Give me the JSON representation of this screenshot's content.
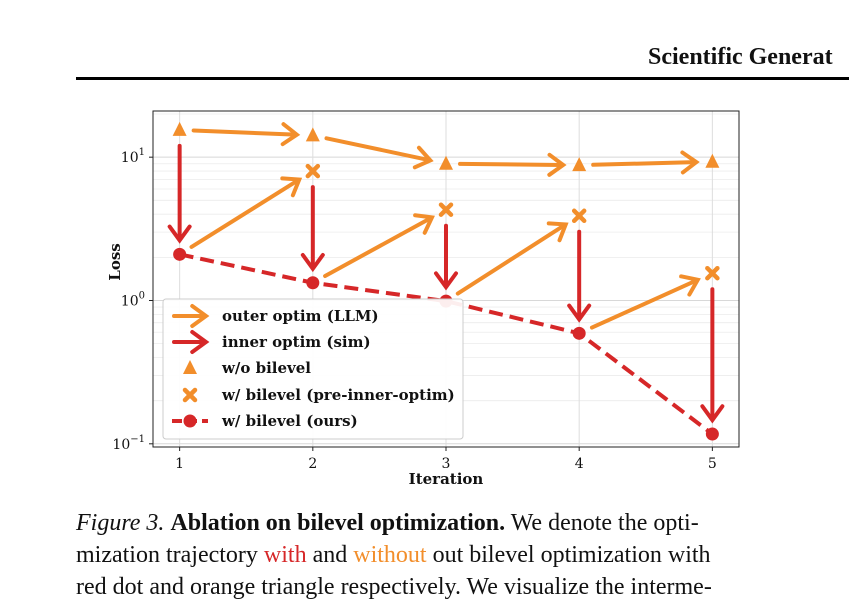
{
  "header": {
    "running_title": "Scientific Generat"
  },
  "figure": {
    "caption": {
      "label": "Figure 3.",
      "title": "Ablation on bilevel optimization.",
      "line1_rest": "We denote the opti-",
      "line2_a": "mization trajectory ",
      "line2_with": "with",
      "line2_b": " and ",
      "line2_without": "without",
      "line2_c": " out bilevel optimization with",
      "line3": "red dot and orange triangle respectively. We visualize the interme-"
    }
  },
  "chart_data": {
    "type": "line",
    "xlabel": "Iteration",
    "ylabel": "Loss",
    "yscale": "log",
    "xlim": [
      0.8,
      5.2
    ],
    "ylim": [
      0.095,
      21
    ],
    "xticks": [
      "1",
      "2",
      "3",
      "4",
      "5"
    ],
    "yticks": [
      {
        "value": 10,
        "base": "10",
        "exp": "1"
      },
      {
        "value": 1,
        "base": "10",
        "exp": "0"
      },
      {
        "value": 0.1,
        "base": "10",
        "exp": "−1"
      }
    ],
    "grid": true,
    "legend_position": "lower-left",
    "colors": {
      "orange": "#f28e2b",
      "red": "#d62728"
    },
    "series": [
      {
        "name": "w/o bilevel",
        "marker": "triangle",
        "x": [
          1,
          2,
          3,
          4,
          5
        ],
        "y": [
          15.5,
          14.2,
          9.0,
          8.8,
          9.3
        ]
      },
      {
        "name": "w/ bilevel (pre-inner-optim)",
        "marker": "x",
        "x": [
          2,
          3,
          4,
          5
        ],
        "y": [
          8.0,
          4.3,
          3.9,
          1.55
        ]
      },
      {
        "name": "w/ bilevel (ours)",
        "marker": "circle",
        "linestyle": "dashed",
        "x": [
          1,
          2,
          3,
          4,
          5
        ],
        "y": [
          2.1,
          1.33,
          0.99,
          0.59,
          0.117
        ]
      }
    ],
    "legend": [
      {
        "label": "outer optim (LLM)",
        "kind": "arrow-orange"
      },
      {
        "label": "inner optim (sim)",
        "kind": "arrow-red"
      },
      {
        "label": "w/o bilevel",
        "kind": "triangle"
      },
      {
        "label": "w/ bilevel (pre-inner-optim)",
        "kind": "x"
      },
      {
        "label": "w/ bilevel (ours)",
        "kind": "dashed-circle"
      }
    ],
    "outer_optim_arrows": [
      {
        "from": [
          1,
          15.5
        ],
        "to": [
          2,
          14.2
        ]
      },
      {
        "from": [
          2,
          14.2
        ],
        "to": [
          3,
          9.0
        ]
      },
      {
        "from": [
          3,
          9.0
        ],
        "to": [
          4,
          8.8
        ]
      },
      {
        "from": [
          4,
          8.8
        ],
        "to": [
          5,
          9.3
        ]
      },
      {
        "from": [
          1,
          2.1
        ],
        "to": [
          2,
          8.0
        ]
      },
      {
        "from": [
          2,
          1.33
        ],
        "to": [
          3,
          4.3
        ]
      },
      {
        "from": [
          3,
          0.99
        ],
        "to": [
          4,
          3.9
        ]
      },
      {
        "from": [
          4,
          0.59
        ],
        "to": [
          5,
          1.55
        ]
      }
    ],
    "inner_optim_arrows": [
      {
        "from": [
          1,
          15.5
        ],
        "to": [
          1,
          2.1
        ]
      },
      {
        "from": [
          2,
          8.0
        ],
        "to": [
          2,
          1.33
        ]
      },
      {
        "from": [
          3,
          4.3
        ],
        "to": [
          3,
          0.99
        ]
      },
      {
        "from": [
          4,
          3.9
        ],
        "to": [
          4,
          0.59
        ]
      },
      {
        "from": [
          5,
          1.55
        ],
        "to": [
          5,
          0.117
        ]
      }
    ]
  }
}
